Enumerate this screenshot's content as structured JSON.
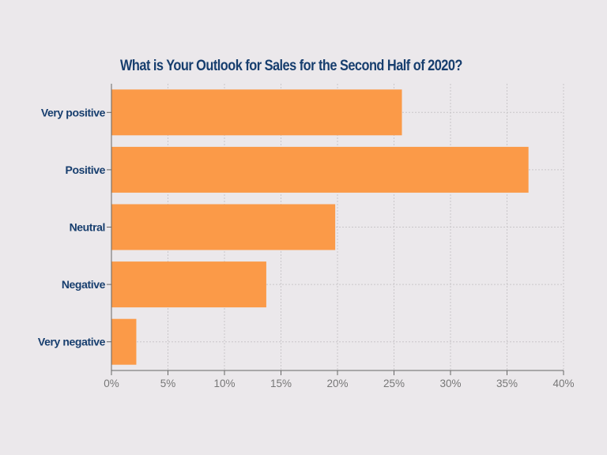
{
  "chart_data": {
    "type": "bar",
    "orientation": "horizontal",
    "title": "What is Your Outlook for Sales for the Second Half of 2020?",
    "categories": [
      "Very positive",
      "Positive",
      "Neutral",
      "Negative",
      "Very negative"
    ],
    "values": [
      25.7,
      36.9,
      19.8,
      13.7,
      2.2
    ],
    "xlim": [
      0,
      40
    ],
    "x_ticks": [
      "0%",
      "5%",
      "10%",
      "15%",
      "20%",
      "25%",
      "30%",
      "35%",
      "40%"
    ],
    "x_tick_values": [
      0,
      5,
      10,
      15,
      20,
      25,
      30,
      35,
      40
    ],
    "grid": true,
    "bar_color": "#fb9a48"
  }
}
